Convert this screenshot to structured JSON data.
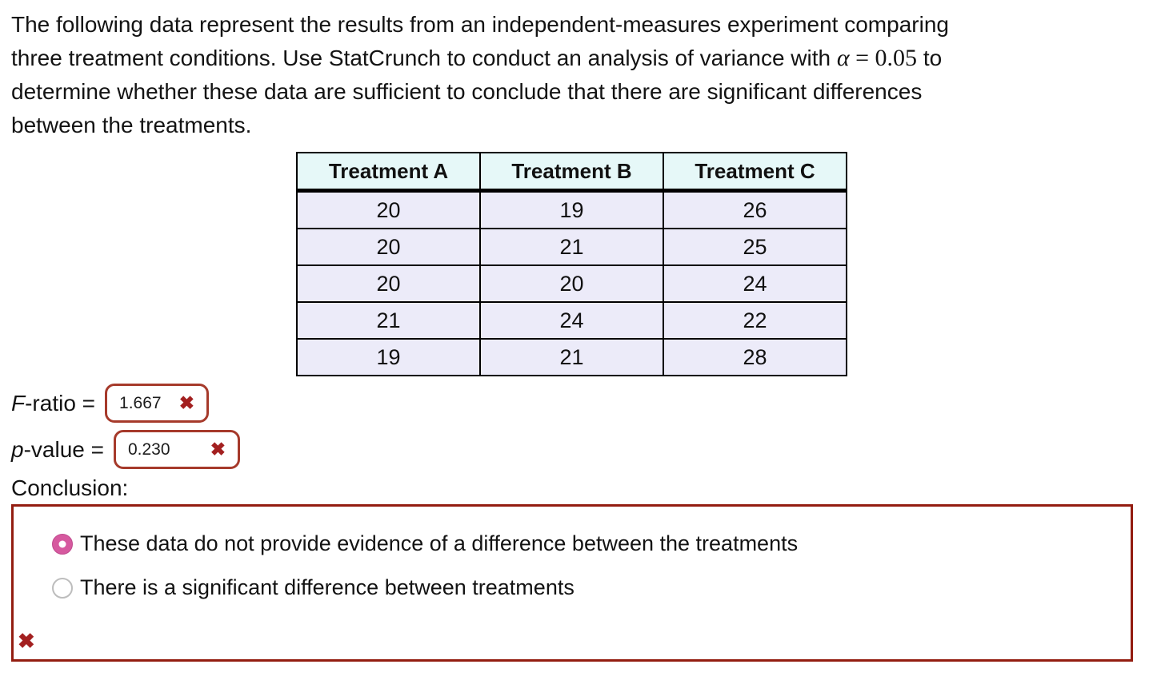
{
  "intro": {
    "line1": "The following data represent the results from an independent-measures experiment comparing",
    "line2_before": "three treatment conditions. Use StatCrunch to conduct an analysis of variance with ",
    "line2_math_alpha": "α",
    "line2_math_rest": " = 0.05",
    "line2_after": " to",
    "line3": "determine whether these data are sufficient to conclude that there are significant differences",
    "line4": "between the treatments."
  },
  "table": {
    "headers": [
      "Treatment A",
      "Treatment B",
      "Treatment C"
    ],
    "rows": [
      [
        20,
        19,
        26
      ],
      [
        20,
        21,
        25
      ],
      [
        20,
        20,
        24
      ],
      [
        21,
        24,
        22
      ],
      [
        19,
        21,
        28
      ]
    ]
  },
  "answers": {
    "f_label_italic": "F",
    "f_label_rest": "-ratio =",
    "f_value": "1.667",
    "p_label_italic": "p",
    "p_label_rest": "-value =",
    "p_value": "0.230"
  },
  "marks": {
    "incorrect": "✖"
  },
  "conclusion": {
    "label": "Conclusion:",
    "options": [
      {
        "label": "These data do not provide evidence of a difference between the treatments",
        "selected": true
      },
      {
        "label": "There is a significant difference between treatments",
        "selected": false
      }
    ]
  },
  "colors": {
    "input_border_red": "#a63a2b",
    "conclusion_border_red": "#931c10",
    "error_x_red": "#a32020",
    "radio_selected_pink": "#d6599f",
    "table_header_bg": "#e6f8f8",
    "table_cell_bg": "#ecebf9"
  }
}
